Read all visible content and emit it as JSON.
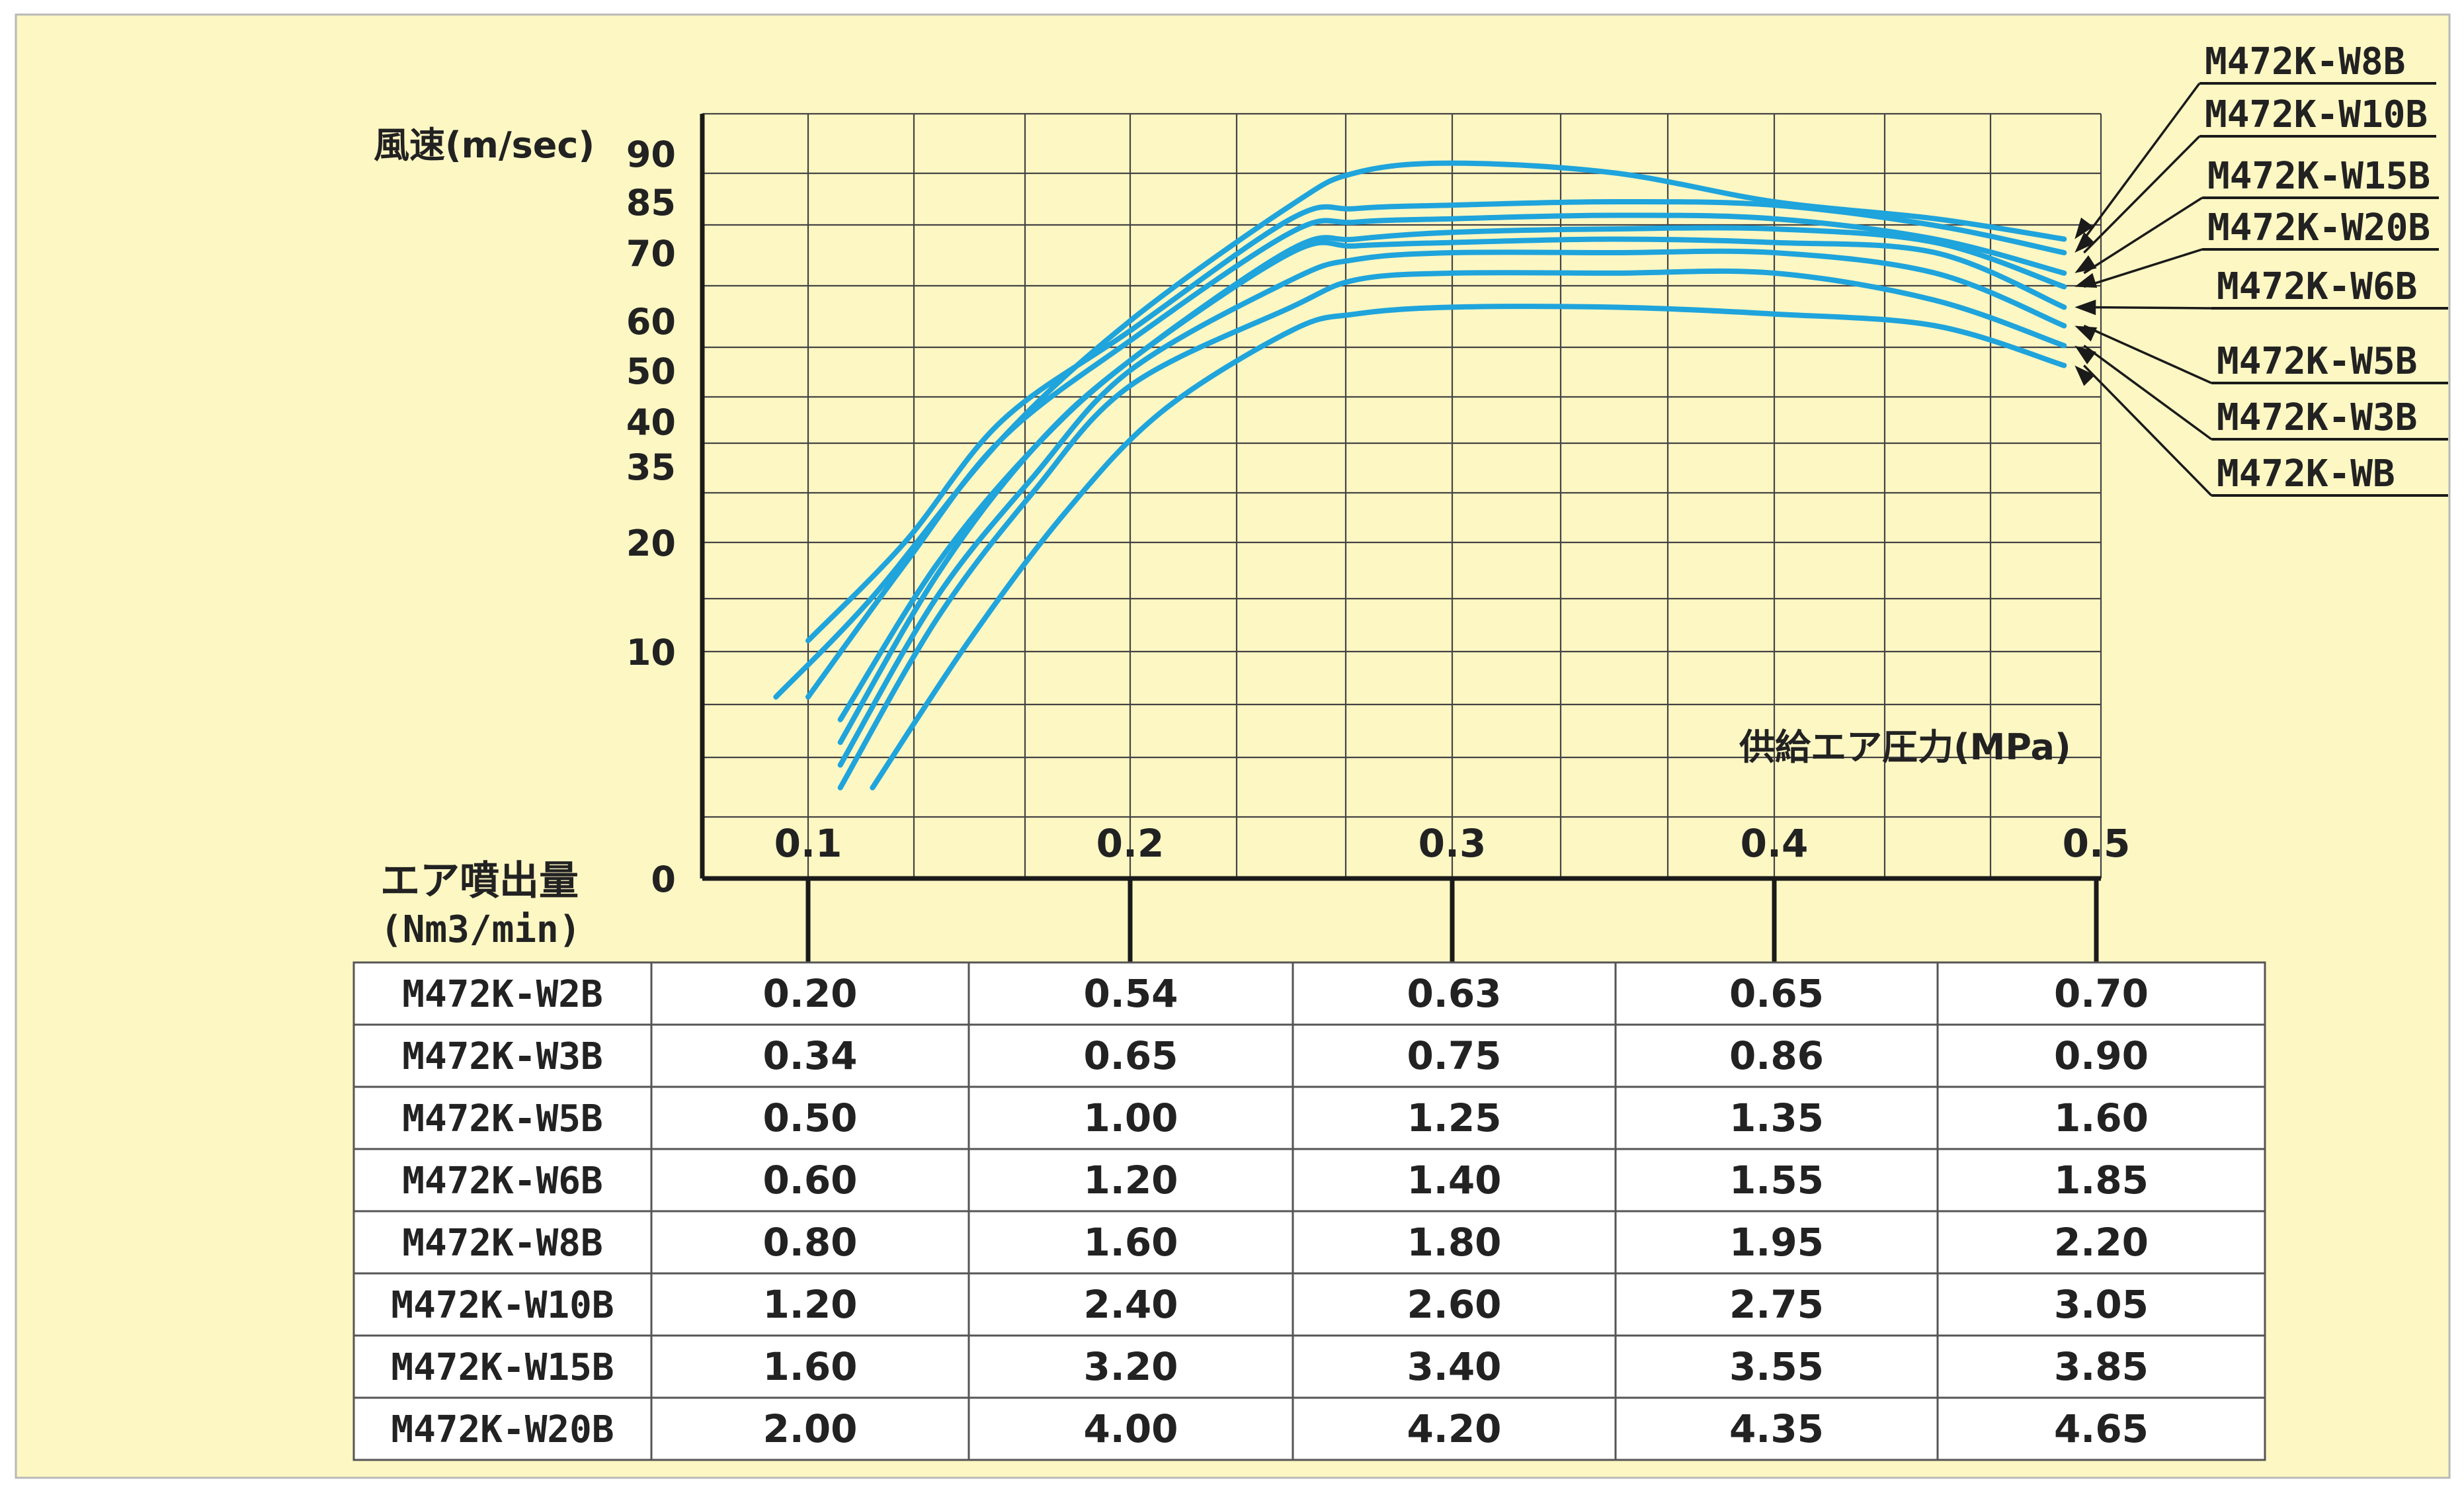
{
  "chart_data": {
    "type": "line",
    "xlabel": "供給エア圧力(MPa)",
    "ylabel": "風速(m/sec)",
    "x_ticks": [
      "0.1",
      "0.2",
      "0.3",
      "0.4",
      "0.5"
    ],
    "y_ticks": [
      "90",
      "85",
      "70",
      "60",
      "50",
      "40",
      "35",
      "20",
      "10",
      "0"
    ],
    "xlim": [
      0.1,
      0.5
    ],
    "grid": true,
    "legend_placement": "right",
    "series_color": "#1fa4dc",
    "series": [
      {
        "name": "M472K-W8B",
        "x": [
          0.09,
          0.12,
          0.16,
          0.2,
          0.25,
          0.27,
          0.3,
          0.35,
          0.4,
          0.45,
          0.49
        ],
        "y": [
          8,
          15,
          38,
          60,
          84,
          88,
          89,
          88,
          85,
          80,
          74
        ]
      },
      {
        "name": "M472K-W10B",
        "x": [
          0.1,
          0.13,
          0.16,
          0.2,
          0.25,
          0.27,
          0.3,
          0.35,
          0.4,
          0.45,
          0.49
        ],
        "y": [
          11,
          20,
          40,
          58,
          80,
          83,
          84,
          85,
          84,
          78,
          70
        ]
      },
      {
        "name": "M472K-W15B",
        "x": [
          0.1,
          0.13,
          0.16,
          0.2,
          0.25,
          0.27,
          0.3,
          0.35,
          0.4,
          0.45,
          0.49
        ],
        "y": [
          8,
          18,
          38,
          56,
          76,
          79,
          80,
          81,
          80,
          74,
          67
        ]
      },
      {
        "name": "M472K-W20B",
        "x": [
          0.11,
          0.14,
          0.17,
          0.2,
          0.25,
          0.27,
          0.3,
          0.35,
          0.4,
          0.45,
          0.49
        ],
        "y": [
          7,
          18,
          37,
          52,
          71,
          74,
          76,
          77,
          77,
          73,
          65
        ]
      },
      {
        "name": "M472K-W6B",
        "x": [
          0.11,
          0.14,
          0.17,
          0.2,
          0.25,
          0.27,
          0.3,
          0.35,
          0.4,
          0.45,
          0.49
        ],
        "y": [
          6,
          17,
          37,
          52,
          70,
          72,
          73,
          74,
          73,
          70,
          62
        ]
      },
      {
        "name": "M472K-W5B",
        "x": [
          0.11,
          0.14,
          0.17,
          0.2,
          0.25,
          0.27,
          0.3,
          0.35,
          0.4,
          0.45,
          0.49
        ],
        "y": [
          5,
          15,
          33,
          50,
          66,
          69,
          70,
          70,
          70,
          67,
          59
        ]
      },
      {
        "name": "M472K-W3B",
        "x": [
          0.11,
          0.14,
          0.17,
          0.2,
          0.25,
          0.27,
          0.3,
          0.35,
          0.4,
          0.45,
          0.49
        ],
        "y": [
          4,
          13,
          30,
          47,
          62,
          66,
          67,
          67,
          67,
          63,
          55
        ]
      },
      {
        "name": "M472K-WB",
        "x": [
          0.12,
          0.15,
          0.18,
          0.21,
          0.25,
          0.27,
          0.3,
          0.35,
          0.4,
          0.45,
          0.49
        ],
        "y": [
          4,
          11,
          26,
          42,
          58,
          61,
          62,
          62,
          61,
          59,
          51
        ]
      }
    ]
  },
  "flow_table": {
    "title": "エア噴出量",
    "unit": "(Nm3/min)",
    "rows": [
      {
        "model": "M472K-W2B",
        "values": [
          "0.20",
          "0.54",
          "0.63",
          "0.65",
          "0.70"
        ]
      },
      {
        "model": "M472K-W3B",
        "values": [
          "0.34",
          "0.65",
          "0.75",
          "0.86",
          "0.90"
        ]
      },
      {
        "model": "M472K-W5B",
        "values": [
          "0.50",
          "1.00",
          "1.25",
          "1.35",
          "1.60"
        ]
      },
      {
        "model": "M472K-W6B",
        "values": [
          "0.60",
          "1.20",
          "1.40",
          "1.55",
          "1.85"
        ]
      },
      {
        "model": "M472K-W8B",
        "values": [
          "0.80",
          "1.60",
          "1.80",
          "1.95",
          "2.20"
        ]
      },
      {
        "model": "M472K-W10B",
        "values": [
          "1.20",
          "2.40",
          "2.60",
          "2.75",
          "3.05"
        ]
      },
      {
        "model": "M472K-W15B",
        "values": [
          "1.60",
          "3.20",
          "3.40",
          "3.55",
          "3.85"
        ]
      },
      {
        "model": "M472K-W20B",
        "values": [
          "2.00",
          "4.00",
          "4.20",
          "4.35",
          "4.65"
        ]
      }
    ]
  }
}
